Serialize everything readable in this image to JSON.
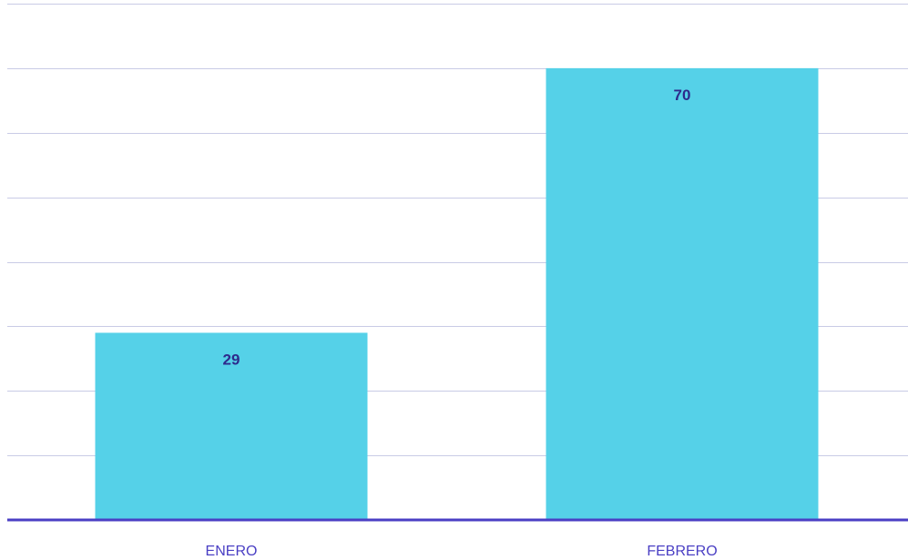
{
  "chart_data": {
    "type": "bar",
    "title": "",
    "xlabel": "",
    "ylabel": "",
    "categories": [
      "ENERO",
      "FEBRERO"
    ],
    "values": [
      29,
      70
    ],
    "data_labels": [
      "29",
      "70"
    ],
    "ylim": [
      0,
      80
    ],
    "grid": true,
    "legend": "none"
  },
  "colors": {
    "bar": "#55d1e8",
    "gridline": "#c9cbe6",
    "baseline": "#4a3fc4",
    "tick_label": "#4a3fc4",
    "data_label": "#2e2a8c"
  }
}
